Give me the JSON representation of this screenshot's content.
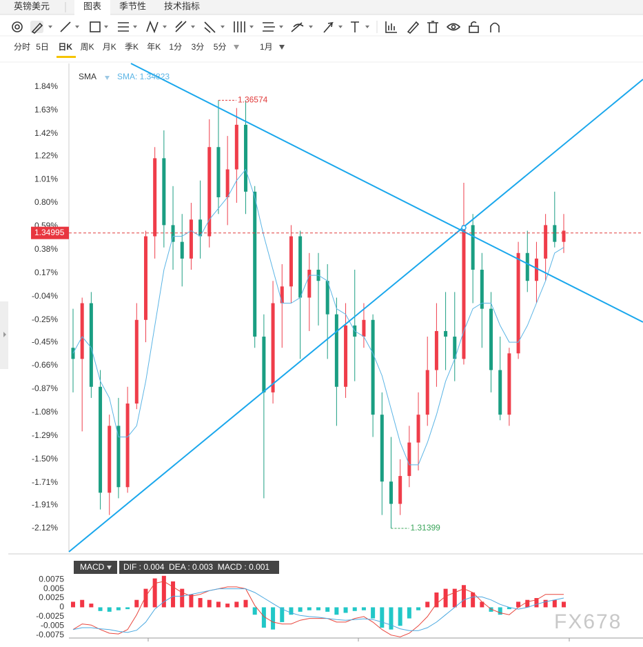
{
  "toolbar": {
    "symbol": "英镑美元",
    "tabs": [
      "图表",
      "季节性",
      "技术指标"
    ],
    "periods": [
      "分时",
      "5日",
      "日K",
      "周K",
      "月K",
      "季K",
      "年K",
      "1分",
      "3分",
      "5分"
    ],
    "range": "1月"
  },
  "watermark": "FX678",
  "chart_data": [
    {
      "type": "candlestick",
      "up_color": "#ef3d4a",
      "down_color": "#1a9e82",
      "ylim": [
        -2.33,
        2.05
      ],
      "yticks": [
        {
          "value": 1.84,
          "label": "1.84%"
        },
        {
          "value": 1.63,
          "label": "1.63%"
        },
        {
          "value": 1.42,
          "label": "1.42%"
        },
        {
          "value": 1.22,
          "label": "1.22%"
        },
        {
          "value": 1.01,
          "label": "1.01%"
        },
        {
          "value": 0.8,
          "label": "0.80%"
        },
        {
          "value": 0.59,
          "label": "0.59%"
        },
        {
          "value": 0.38,
          "label": "0.38%"
        },
        {
          "value": 0.17,
          "label": "0.17%"
        },
        {
          "value": -0.04,
          "label": "-0.04%"
        },
        {
          "value": -0.25,
          "label": "-0.25%"
        },
        {
          "value": -0.45,
          "label": "-0.45%"
        },
        {
          "value": -0.66,
          "label": "-0.66%"
        },
        {
          "value": -0.87,
          "label": "-0.87%"
        },
        {
          "value": -1.08,
          "label": "-1.08%"
        },
        {
          "value": -1.29,
          "label": "-1.29%"
        },
        {
          "value": -1.5,
          "label": "-1.50%"
        },
        {
          "value": -1.71,
          "label": "-1.71%"
        },
        {
          "value": -1.91,
          "label": "-1.91%"
        },
        {
          "value": -2.12,
          "label": "-2.12%"
        }
      ],
      "open": [
        -0.5,
        -0.6,
        -0.1,
        -0.85,
        -1.8,
        -1.2,
        -1.75,
        -1.0,
        -0.25,
        0.5,
        1.2,
        0.6,
        0.45,
        0.3,
        0.65,
        0.5,
        1.3,
        0.85,
        1.1,
        1.5,
        0.9,
        -0.4,
        -0.9,
        -0.1,
        0.05,
        0.5,
        -0.05,
        0.2,
        0.1,
        -0.2,
        -0.85,
        -0.3,
        -0.4,
        -0.25,
        -1.1,
        -1.7,
        -1.9,
        -1.65,
        -1.35,
        -1.1,
        -0.7,
        -0.35,
        -0.4,
        -0.6,
        0.6,
        0.2,
        -0.15,
        -0.7,
        -1.1,
        -0.55,
        0.35,
        0.1,
        0.3,
        0.6,
        0.45
      ],
      "high": [
        -0.15,
        -0.05,
        0.0,
        -0.7,
        -1.1,
        -0.95,
        -0.85,
        -0.1,
        0.55,
        1.3,
        1.45,
        0.95,
        0.7,
        0.8,
        1.0,
        1.55,
        1.72,
        1.4,
        1.65,
        1.72,
        0.95,
        -0.2,
        0.1,
        0.25,
        0.6,
        0.55,
        0.35,
        0.35,
        0.25,
        -0.05,
        -0.1,
        0.2,
        -0.1,
        -0.2,
        -0.9,
        -1.3,
        -1.5,
        -1.2,
        -0.9,
        -0.4,
        -0.1,
        0.0,
        0.0,
        0.98,
        0.7,
        0.35,
        0.0,
        -0.4,
        -0.5,
        0.45,
        0.55,
        0.45,
        0.7,
        0.9,
        0.7
      ],
      "low": [
        -0.9,
        -1.25,
        -0.95,
        -1.95,
        -2.0,
        -1.85,
        -1.8,
        -1.05,
        -0.45,
        0.3,
        0.4,
        0.2,
        0.05,
        0.2,
        0.3,
        0.4,
        0.7,
        0.6,
        0.8,
        0.7,
        -0.5,
        -1.85,
        -1.0,
        -0.5,
        -0.1,
        -0.6,
        -0.35,
        -0.3,
        -0.6,
        -1.2,
        -0.95,
        -0.8,
        -0.5,
        -1.3,
        -2.0,
        -2.12,
        -2.0,
        -1.75,
        -1.6,
        -1.2,
        -0.85,
        -0.7,
        -0.8,
        -0.65,
        -0.1,
        -0.5,
        -0.9,
        -1.15,
        -1.2,
        -0.6,
        0.0,
        -0.1,
        0.1,
        0.4,
        0.35
      ],
      "close": [
        -0.6,
        -0.1,
        -0.85,
        -1.8,
        -1.2,
        -1.75,
        -1.0,
        -0.25,
        0.5,
        1.2,
        0.6,
        0.45,
        0.3,
        0.65,
        0.5,
        1.3,
        0.85,
        1.1,
        1.5,
        0.9,
        -0.4,
        -0.9,
        -0.1,
        0.05,
        0.5,
        -0.05,
        0.2,
        0.1,
        -0.2,
        -0.85,
        -0.3,
        -0.4,
        -0.25,
        -1.1,
        -1.7,
        -1.9,
        -1.65,
        -1.35,
        -1.1,
        -0.7,
        -0.35,
        -0.4,
        -0.6,
        0.6,
        0.2,
        -0.15,
        -0.7,
        -1.1,
        -0.55,
        0.35,
        0.1,
        0.3,
        0.6,
        0.45,
        0.55
      ],
      "sma": {
        "name": "SMA",
        "label": "SMA: 1.34823",
        "color": "#5ab4e5",
        "values": [
          -0.55,
          -0.4,
          -0.5,
          -0.8,
          -0.95,
          -1.3,
          -1.3,
          -1.2,
          -0.8,
          -0.3,
          0.2,
          0.5,
          0.5,
          0.55,
          0.5,
          0.65,
          0.75,
          0.85,
          1.0,
          1.1,
          0.85,
          0.5,
          0.2,
          -0.1,
          -0.1,
          -0.05,
          0.15,
          0.15,
          0.1,
          -0.15,
          -0.2,
          -0.35,
          -0.4,
          -0.55,
          -0.75,
          -1.05,
          -1.35,
          -1.55,
          -1.55,
          -1.35,
          -1.1,
          -0.8,
          -0.6,
          -0.35,
          -0.15,
          -0.1,
          -0.1,
          -0.3,
          -0.45,
          -0.45,
          -0.3,
          -0.1,
          0.1,
          0.35,
          0.4
        ]
      },
      "high_label": "1.36574",
      "low_label": "1.31399",
      "price_line": {
        "label": "1.34995",
        "value": 0.53
      }
    },
    {
      "type": "macd",
      "title": "MACD",
      "legend": "DIF : 0.004  DEA : 0.003  MACD : 0.001",
      "ylim": [
        -0.0083,
        0.0094
      ],
      "yticks": [
        0.0075,
        0.005,
        0.0025,
        0,
        -0.0025,
        -0.005,
        -0.0075
      ],
      "up_color": "#f23645",
      "down_color": "#22c7c7",
      "hist": [
        0.0015,
        0.002,
        0.001,
        -0.001,
        -0.0012,
        -0.0008,
        -0.0005,
        0.002,
        0.005,
        0.0078,
        0.0085,
        0.007,
        0.005,
        0.0035,
        0.0025,
        0.002,
        0.0015,
        0.001,
        0.0015,
        0.002,
        -0.002,
        -0.0055,
        -0.006,
        -0.004,
        -0.002,
        -0.0012,
        -0.0008,
        -0.0008,
        -0.0012,
        -0.002,
        -0.0015,
        -0.001,
        -0.0008,
        -0.003,
        -0.0055,
        -0.006,
        -0.005,
        -0.003,
        -0.0008,
        0.0015,
        0.004,
        0.005,
        0.005,
        0.006,
        0.004,
        0.0015,
        -0.0012,
        -0.002,
        -0.0005,
        0.0015,
        0.002,
        0.0025,
        0.002,
        0.002,
        0.0015
      ],
      "series": [
        {
          "name": "DIF",
          "color": "#e8453c",
          "values": [
            -0.006,
            -0.0045,
            -0.0048,
            -0.006,
            -0.007,
            -0.0072,
            -0.006,
            -0.002,
            0.003,
            0.0065,
            0.007,
            0.0055,
            0.004,
            0.003,
            0.0035,
            0.0045,
            0.005,
            0.0055,
            0.0055,
            0.005,
            0.0005,
            -0.0025,
            -0.004,
            -0.0045,
            -0.0045,
            -0.0035,
            -0.003,
            -0.003,
            -0.003,
            -0.004,
            -0.004,
            -0.003,
            -0.0025,
            -0.004,
            -0.006,
            -0.0075,
            -0.008,
            -0.007,
            -0.005,
            -0.0025,
            0.001,
            0.003,
            0.004,
            0.005,
            0.004,
            0.0015,
            -0.0005,
            -0.0015,
            -0.002,
            0,
            0.0015,
            0.002,
            0.0035,
            0.0035,
            0.0035
          ]
        },
        {
          "name": "DEA",
          "color": "#4aa8e0",
          "values": [
            -0.006,
            -0.0055,
            -0.0055,
            -0.0058,
            -0.006,
            -0.0065,
            -0.0068,
            -0.0062,
            -0.004,
            -0.0005,
            0.0015,
            0.003,
            0.003,
            0.0035,
            0.004,
            0.0045,
            0.005,
            0.005,
            0.005,
            0.005,
            0.004,
            0.0025,
            0.001,
            -0.0005,
            -0.0015,
            -0.0022,
            -0.0025,
            -0.0027,
            -0.003,
            -0.0033,
            -0.0035,
            -0.0033,
            -0.0031,
            -0.0033,
            -0.004,
            -0.0048,
            -0.0058,
            -0.0063,
            -0.0063,
            -0.0055,
            -0.004,
            -0.002,
            0,
            0.002,
            0.0028,
            0.0028,
            0.002,
            0.0008,
            0,
            -0.0005,
            0,
            0.0008,
            0.0015,
            0.002,
            0.0025
          ]
        }
      ]
    }
  ]
}
